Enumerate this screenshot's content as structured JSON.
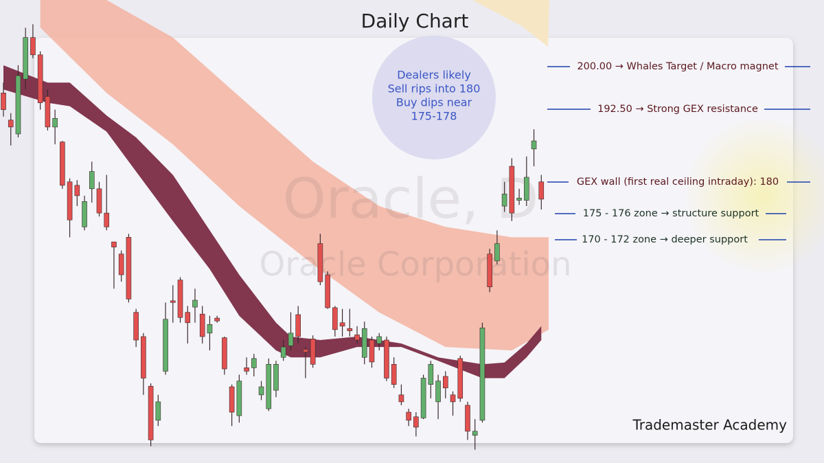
{
  "chart_data": {
    "type": "candlestick",
    "title": "Daily Chart",
    "watermark": [
      "Oracle, D",
      "Oracle Corporation"
    ],
    "callout": [
      "Dealers likely",
      "Sell rips into 180",
      "Buy dips near",
      "175-178"
    ],
    "annotations": [
      "200.00 → Whales Target / Macro magnet",
      "192.50 → Strong GEX resistance",
      "GEX wall (first real ceiling intraday): 180",
      "175 - 176 zone → structure support",
      "170 - 172 zone → deeper support"
    ],
    "credit": "Trademaster Academy",
    "ylim": [
      131.3,
      211.5
    ],
    "up_color": "#62b06c",
    "down_color": "#e2504f",
    "ohlc": [
      [
        195.4,
        197.2,
        191.3,
        192.5
      ],
      [
        190.7,
        191.9,
        186.3,
        189.5
      ],
      [
        188.3,
        200.2,
        187.7,
        198.4
      ],
      [
        197.8,
        206.7,
        196.0,
        205.0
      ],
      [
        205.0,
        207.3,
        201.4,
        202.0
      ],
      [
        202.0,
        202.6,
        192.5,
        193.7
      ],
      [
        194.8,
        196.0,
        188.9,
        189.5
      ],
      [
        189.5,
        192.5,
        186.5,
        191.0
      ],
      [
        186.9,
        187.1,
        178.8,
        179.4
      ],
      [
        180.0,
        180.6,
        170.4,
        173.4
      ],
      [
        179.4,
        180.3,
        175.8,
        177.6
      ],
      [
        172.2,
        177.6,
        171.6,
        176.6
      ],
      [
        178.8,
        183.5,
        176.4,
        181.8
      ],
      [
        178.8,
        180.0,
        174.0,
        174.6
      ],
      [
        174.6,
        181.2,
        171.6,
        172.2
      ],
      [
        169.6,
        169.6,
        161.5,
        168.7
      ],
      [
        167.5,
        168.1,
        162.7,
        163.9
      ],
      [
        170.4,
        171.0,
        159.1,
        159.7
      ],
      [
        157.4,
        158.0,
        151.4,
        152.6
      ],
      [
        153.2,
        153.8,
        143.1,
        146.0
      ],
      [
        144.6,
        145.1,
        134.2,
        135.3
      ],
      [
        138.7,
        143.1,
        137.7,
        141.9
      ],
      [
        147.2,
        159.1,
        146.6,
        156.2
      ],
      [
        159.4,
        162.1,
        155.6,
        159.1
      ],
      [
        163.0,
        163.5,
        155.6,
        156.5
      ],
      [
        157.4,
        158.5,
        152.0,
        155.6
      ],
      [
        158.3,
        161.5,
        155.6,
        159.5
      ],
      [
        157.1,
        158.5,
        152.0,
        153.2
      ],
      [
        153.8,
        156.8,
        150.8,
        155.3
      ],
      [
        156.4,
        156.8,
        155.6,
        155.9
      ],
      [
        153.0,
        153.2,
        146.6,
        147.6
      ],
      [
        144.5,
        144.9,
        137.7,
        140.1
      ],
      [
        139.5,
        146.6,
        138.3,
        145.5
      ],
      [
        147.8,
        149.6,
        146.6,
        147.2
      ],
      [
        147.8,
        150.2,
        146.3,
        149.4
      ],
      [
        143.1,
        145.5,
        142.2,
        144.5
      ],
      [
        140.7,
        149.4,
        140.3,
        148.4
      ],
      [
        143.9,
        149.0,
        142.7,
        148.4
      ],
      [
        149.6,
        152.6,
        149.0,
        151.4
      ],
      [
        151.6,
        157.4,
        150.8,
        153.8
      ],
      [
        157.0,
        158.5,
        152.0,
        153.2
      ],
      [
        151.0,
        151.4,
        146.0,
        150.5
      ],
      [
        152.8,
        153.4,
        147.8,
        148.4
      ],
      [
        169.3,
        171.0,
        162.1,
        162.7
      ],
      [
        163.9,
        164.5,
        158.0,
        158.2
      ],
      [
        158.2,
        158.5,
        153.2,
        154.4
      ],
      [
        155.6,
        158.0,
        153.2,
        155.0
      ],
      [
        154.6,
        158.0,
        153.2,
        154.2
      ],
      [
        153.5,
        155.0,
        152.0,
        152.6
      ],
      [
        149.6,
        155.8,
        148.4,
        154.6
      ],
      [
        152.6,
        153.2,
        147.8,
        148.8
      ],
      [
        152.0,
        153.8,
        150.8,
        153.2
      ],
      [
        152.6,
        153.2,
        145.5,
        146.0
      ],
      [
        148.4,
        149.6,
        144.3,
        144.9
      ],
      [
        143.1,
        144.9,
        141.3,
        141.9
      ],
      [
        140.1,
        140.7,
        137.7,
        138.7
      ],
      [
        139.3,
        140.1,
        135.9,
        137.5
      ],
      [
        139.1,
        146.6,
        138.9,
        146.0
      ],
      [
        144.9,
        149.0,
        142.5,
        148.4
      ],
      [
        141.9,
        146.6,
        138.9,
        145.5
      ],
      [
        146.3,
        147.2,
        142.5,
        144.3
      ],
      [
        143.1,
        143.7,
        139.5,
        141.9
      ],
      [
        149.4,
        149.9,
        141.9,
        142.5
      ],
      [
        141.3,
        141.9,
        135.3,
        136.8
      ],
      [
        136.1,
        138.9,
        133.6,
        136.8
      ],
      [
        138.7,
        155.6,
        138.3,
        154.7
      ],
      [
        167.5,
        168.4,
        160.9,
        161.8
      ],
      [
        166.3,
        171.6,
        165.7,
        169.3
      ],
      [
        175.8,
        180.0,
        174.8,
        177.9
      ],
      [
        182.7,
        184.1,
        173.2,
        174.6
      ],
      [
        176.8,
        178.8,
        176.0,
        177.2
      ],
      [
        176.8,
        184.4,
        175.8,
        180.8
      ],
      [
        185.7,
        189.1,
        182.7,
        187.1
      ],
      [
        180.0,
        181.2,
        175.2,
        177.0
      ]
    ],
    "ribbons": [
      {
        "color": "#f3b3a1",
        "x": [
          5,
          14,
          23,
          32,
          42,
          51,
          60,
          69,
          74
        ],
        "upper": [
          211.5,
          211.5,
          205.0,
          194.8,
          183.5,
          175.8,
          172.2,
          170.4,
          170.4
        ],
        "lower": [
          206.7,
          195.4,
          186.5,
          175.8,
          165.7,
          157.4,
          151.4,
          150.8,
          154.4
        ]
      },
      {
        "color": "#7b2c44",
        "x": [
          0,
          6,
          9,
          14,
          18,
          23,
          28,
          32,
          37,
          39,
          43,
          48,
          54,
          59,
          65,
          68,
          71,
          73
        ],
        "upper": [
          200.2,
          197.2,
          197.2,
          191.5,
          187.7,
          181.2,
          171.6,
          163.9,
          155.6,
          153.2,
          152.6,
          153.2,
          152.0,
          149.6,
          148.4,
          148.7,
          152.0,
          155.0
        ],
        "lower": [
          196.0,
          193.7,
          193.1,
          188.7,
          181.8,
          173.2,
          164.9,
          156.8,
          150.8,
          149.6,
          149.6,
          151.4,
          151.4,
          149.0,
          146.0,
          146.0,
          149.6,
          152.6
        ]
      }
    ]
  }
}
